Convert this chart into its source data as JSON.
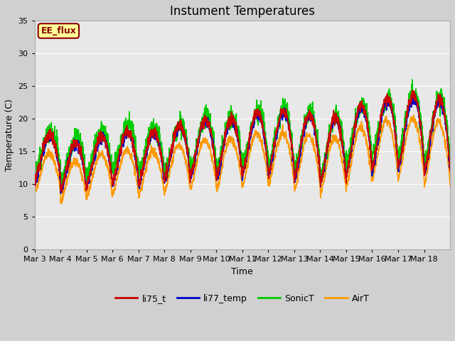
{
  "title": "Instument Temperatures",
  "xlabel": "Time",
  "ylabel": "Temperature (C)",
  "ylim": [
    0,
    35
  ],
  "yticks": [
    0,
    5,
    10,
    15,
    20,
    25,
    30,
    35
  ],
  "x_tick_labels": [
    "Mar 3",
    "Mar 4",
    "Mar 5",
    "Mar 6",
    "Mar 7",
    "Mar 8",
    "Mar 9",
    "Mar 10",
    "Mar 11",
    "Mar 12",
    "Mar 13",
    "Mar 14",
    "Mar 15",
    "Mar 16",
    "Mar 17",
    "Mar 18"
  ],
  "series_colors": [
    "#cc0000",
    "#0000cc",
    "#00cc00",
    "#ff9900"
  ],
  "series_labels": [
    "li75_t",
    "li77_temp",
    "SonicT",
    "AirT"
  ],
  "annotation_text": "EE_flux",
  "annotation_color": "#8b0000",
  "annotation_bg": "#ffff99",
  "fig_bg": "#d0d0d0",
  "plot_bg": "#e8e8e8",
  "grid_color": "#ffffff",
  "n_days": 16,
  "points_per_day": 144,
  "title_fontsize": 12,
  "axis_label_fontsize": 9,
  "tick_fontsize": 8,
  "legend_fontsize": 9,
  "line_width": 1.2
}
